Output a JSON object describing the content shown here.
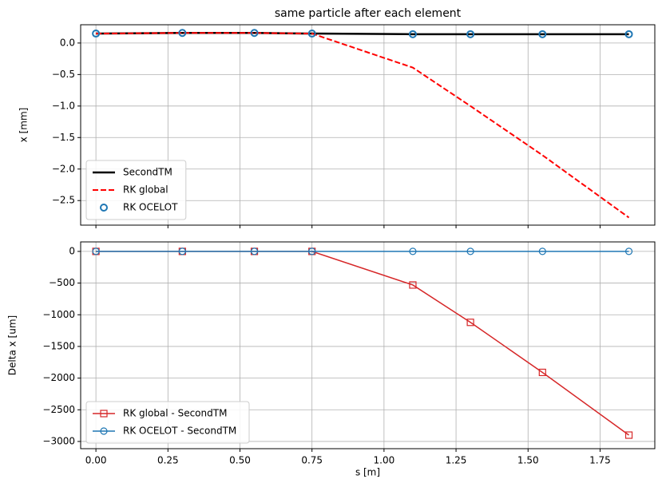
{
  "chart_data": [
    {
      "type": "line",
      "title": "same particle after each element",
      "ylabel": "x [mm]",
      "x": [
        0,
        0.3,
        0.55,
        0.75,
        1.1,
        1.3,
        1.55,
        1.85
      ],
      "xlim": [
        -0.053,
        1.94
      ],
      "ylim": [
        0.29,
        -2.89
      ],
      "xticks": [
        0,
        0.25,
        0.5,
        0.75,
        1,
        1.25,
        1.5,
        1.75
      ],
      "xtick_labels": false,
      "yticks": [
        {
          "value": 0,
          "label": "0.0"
        },
        {
          "value": -0.5,
          "label": "−0.5"
        },
        {
          "value": -1,
          "label": "−1.0"
        },
        {
          "value": -1.5,
          "label": "−1.5"
        },
        {
          "value": -2,
          "label": "−2.0"
        },
        {
          "value": -2.5,
          "label": "−2.5"
        }
      ],
      "grid": true,
      "legend": "lower left",
      "series": [
        {
          "name": "SecondTM",
          "color": "#000000",
          "linestyle": "solid",
          "linewidth": 2.5,
          "marker": null,
          "values": [
            0.15,
            0.16,
            0.16,
            0.15,
            0.14,
            0.14,
            0.14,
            0.14
          ]
        },
        {
          "name": "RK global",
          "color": "#ff0000",
          "linestyle": "dashed",
          "linewidth": 2,
          "marker": null,
          "values": [
            0.15,
            0.16,
            0.16,
            0.15,
            -0.39,
            -1.0,
            -1.78,
            -2.77
          ]
        },
        {
          "name": "RK OCELOT",
          "color": "#1f77b4",
          "linestyle": "none",
          "linewidth": 2,
          "marker": "o",
          "values": [
            0.15,
            0.16,
            0.16,
            0.15,
            0.14,
            0.14,
            0.14,
            0.14
          ]
        }
      ]
    },
    {
      "type": "line",
      "ylabel": "Delta x [um]",
      "xlabel": "s [m]",
      "x": [
        0,
        0.3,
        0.55,
        0.75,
        1.1,
        1.3,
        1.55,
        1.85
      ],
      "xlim": [
        -0.053,
        1.94
      ],
      "ylim": [
        150,
        -3114
      ],
      "xticks": [
        {
          "value": 0,
          "label": "0.00"
        },
        {
          "value": 0.25,
          "label": "0.25"
        },
        {
          "value": 0.5,
          "label": "0.50"
        },
        {
          "value": 0.75,
          "label": "0.75"
        },
        {
          "value": 1,
          "label": "1.00"
        },
        {
          "value": 1.25,
          "label": "1.25"
        },
        {
          "value": 1.5,
          "label": "1.50"
        },
        {
          "value": 1.75,
          "label": "1.75"
        }
      ],
      "xtick_labels": true,
      "yticks": [
        0,
        {
          "value": -500,
          "label": "−500"
        },
        {
          "value": -1000,
          "label": "−1000"
        },
        {
          "value": -1500,
          "label": "−1500"
        },
        {
          "value": -2000,
          "label": "−2000"
        },
        {
          "value": -2500,
          "label": "−2500"
        },
        {
          "value": -3000,
          "label": "−3000"
        }
      ],
      "grid": true,
      "legend": "lower left",
      "series": [
        {
          "name": "RK global - SecondTM",
          "color": "#d62728",
          "linestyle": "solid",
          "linewidth": 1.5,
          "marker": "s",
          "values": [
            0,
            0,
            0,
            0,
            -530,
            -1120,
            -1910,
            -2900
          ]
        },
        {
          "name": "RK OCELOT - SecondTM",
          "color": "#1f77b4",
          "linestyle": "solid",
          "linewidth": 1.5,
          "marker": "o",
          "values": [
            0,
            0,
            0,
            0,
            0,
            0,
            0,
            0
          ]
        }
      ]
    }
  ]
}
